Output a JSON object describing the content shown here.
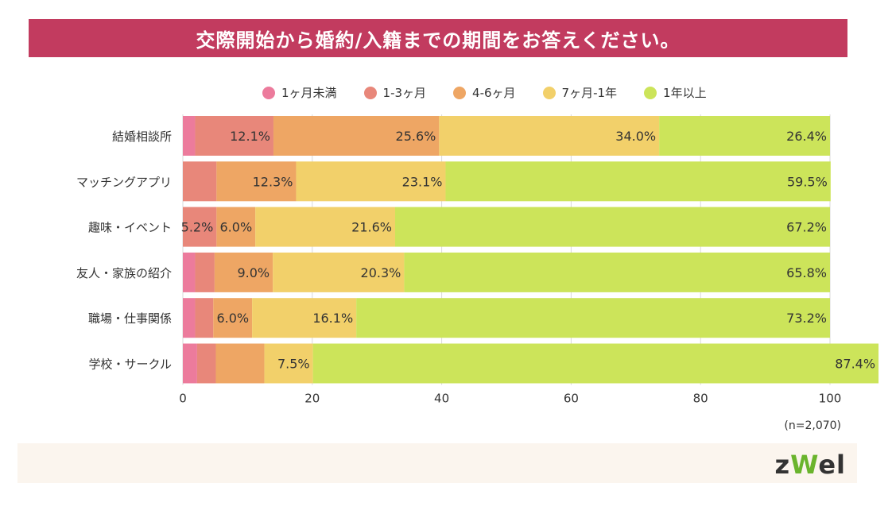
{
  "header": {
    "title": "交際開始から婚約/入籍までの期間をお答えください。"
  },
  "legend": [
    {
      "label": "1ヶ月未満",
      "color": "#ec7b9c"
    },
    {
      "label": "1-3ヶ月",
      "color": "#e8877a"
    },
    {
      "label": "4-6ヶ月",
      "color": "#eea664"
    },
    {
      "label": "7ヶ月-1年",
      "color": "#f2d06a"
    },
    {
      "label": "1年以上",
      "color": "#cce45a"
    }
  ],
  "chart_data": {
    "type": "bar",
    "orientation": "horizontal",
    "stacked": true,
    "categories": [
      "結婚相談所",
      "マッチングアプリ",
      "趣味・イベント",
      "友人・家族の紹介",
      "職場・仕事関係",
      "学校・サークル"
    ],
    "series": [
      {
        "name": "1ヶ月未満",
        "values": [
          1.9,
          0.0,
          0.0,
          1.9,
          1.9,
          2.2
        ]
      },
      {
        "name": "1-3ヶ月",
        "values": [
          12.1,
          5.2,
          5.2,
          3.0,
          2.8,
          2.9
        ]
      },
      {
        "name": "4-6ヶ月",
        "values": [
          25.6,
          12.3,
          6.0,
          9.0,
          6.0,
          7.5
        ]
      },
      {
        "name": "7ヶ月-1年",
        "values": [
          34.0,
          23.1,
          21.6,
          20.3,
          16.1,
          7.5
        ]
      },
      {
        "name": "1年以上",
        "values": [
          26.4,
          59.5,
          67.2,
          65.8,
          73.2,
          87.4
        ]
      }
    ],
    "labels": [
      [
        null,
        "12.1%",
        "25.6%",
        "34.0%",
        "26.4%"
      ],
      [
        null,
        null,
        "12.3%",
        "23.1%",
        "59.5%"
      ],
      [
        null,
        "5.2%",
        "6.0%",
        "21.6%",
        "67.2%"
      ],
      [
        null,
        null,
        "9.0%",
        "20.3%",
        "65.8%"
      ],
      [
        null,
        null,
        "6.0%",
        "16.1%",
        "73.2%"
      ],
      [
        null,
        null,
        null,
        "7.5%",
        "87.4%"
      ]
    ],
    "xlim": [
      0,
      100
    ],
    "xticks": [
      0,
      20,
      40,
      60,
      80,
      100
    ],
    "grid": true
  },
  "note": "(n=2,070)",
  "logo": {
    "prefix": "z",
    "mark": "W",
    "suffix": "el"
  }
}
